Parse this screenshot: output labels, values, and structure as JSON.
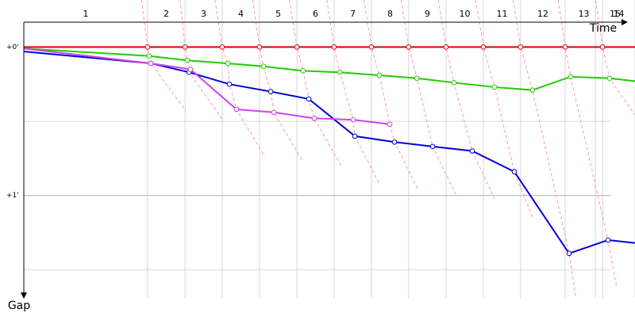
{
  "chart_data": {
    "type": "line",
    "x_label": "Time",
    "y_label": "Gap",
    "xlim": [
      0,
      24.68
    ],
    "ylim": [
      -0.21,
      1.69
    ],
    "y_inverted": true,
    "yticks": [
      {
        "value": 0,
        "label": "+0'"
      },
      {
        "value": 1,
        "label": "+1'"
      }
    ],
    "minor_yticks": [
      0.5,
      1.5
    ],
    "laps": [
      "1",
      "2",
      "3",
      "4",
      "5",
      "6",
      "7",
      "8",
      "9",
      "10",
      "11",
      "12",
      "13",
      "14",
      "15"
    ],
    "lap_ends": [
      5.0,
      6.51,
      8.01,
      9.52,
      11.03,
      12.53,
      14.04,
      15.54,
      17.05,
      18.56,
      20.06,
      21.86,
      23.37,
      24.68,
      23.08
    ],
    "series": [
      {
        "color": "#e00000",
        "x": [
          0,
          5.0,
          6.51,
          8.01,
          9.52,
          11.03,
          12.53,
          14.04,
          15.54,
          17.05,
          18.56,
          20.06,
          21.86,
          23.37,
          24.68
        ],
        "values": [
          0,
          0,
          0,
          0,
          0,
          0,
          0,
          0,
          0,
          0,
          0,
          0,
          0,
          0,
          0
        ]
      },
      {
        "color": "#22cc00",
        "x": [
          0,
          5.06,
          6.6,
          8.24,
          9.68,
          11.28,
          12.76,
          14.36,
          15.87,
          17.37,
          19.01,
          20.54,
          22.08,
          23.65,
          24.68
        ],
        "values": [
          0.01,
          0.06,
          0.09,
          0.11,
          0.13,
          0.16,
          0.17,
          0.19,
          0.21,
          0.24,
          0.27,
          0.29,
          0.2,
          0.21,
          0.23
        ]
      },
      {
        "color": "#0000dd",
        "x": [
          0,
          5.13,
          6.67,
          8.3,
          9.97,
          11.51,
          13.37,
          14.97,
          16.51,
          18.11,
          19.81,
          22.02,
          23.59,
          24.68
        ],
        "values": [
          0.03,
          0.11,
          0.17,
          0.25,
          0.3,
          0.35,
          0.6,
          0.64,
          0.67,
          0.7,
          0.84,
          1.39,
          1.3,
          1.32
        ]
      },
      {
        "color": "#cc44ee",
        "x": [
          0,
          5.13,
          6.73,
          8.59,
          10.1,
          11.73,
          13.3,
          14.78
        ],
        "values": [
          0.01,
          0.11,
          0.15,
          0.42,
          0.44,
          0.48,
          0.49,
          0.52
        ]
      }
    ]
  }
}
